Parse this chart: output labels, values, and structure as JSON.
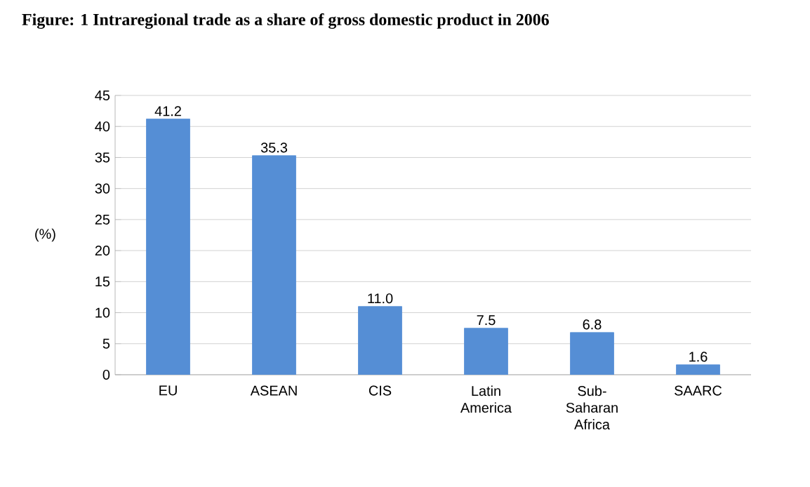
{
  "chart_data": {
    "type": "bar",
    "title": "Figure: 1 Intraregional trade as a share of gross domestic product in 2006",
    "ylabel": "(%)",
    "categories": [
      "EU",
      "ASEAN",
      "CIS",
      "Latin America",
      "Sub-Saharan Africa",
      "SAARC"
    ],
    "values": [
      41.2,
      35.3,
      11.0,
      7.5,
      6.8,
      1.6
    ],
    "color": "#558ed5",
    "ylim": [
      0,
      45
    ],
    "yticks": [
      0,
      5,
      10,
      15,
      20,
      25,
      30,
      35,
      40,
      45
    ],
    "value_labels": [
      "41.2",
      "35.3",
      "11.0",
      "7.5",
      "6.8",
      "1.6"
    ],
    "grid": "y"
  }
}
